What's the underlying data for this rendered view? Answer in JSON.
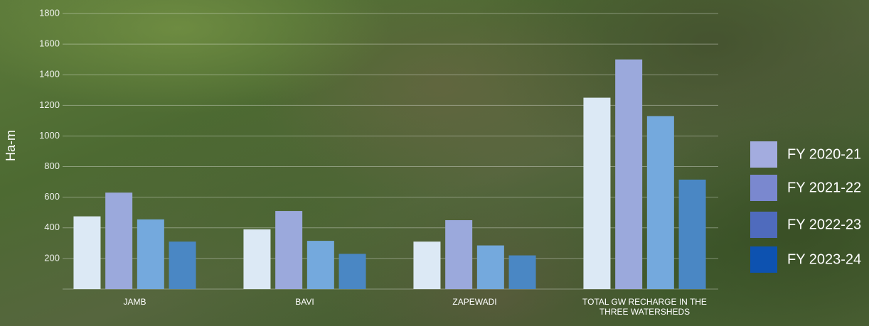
{
  "chart_data": {
    "type": "bar",
    "y_label": "Ha-m",
    "categories": [
      "JAMB",
      "BAVI",
      "ZAPEWADI",
      "TOTAL GW RECHARGE IN THE THREE WATERSHEDS"
    ],
    "series": [
      {
        "name": "FY 2020-21",
        "color": "#dce9f5",
        "legend_color": "#a3acdf",
        "values": [
          475,
          390,
          310,
          1250
        ]
      },
      {
        "name": "FY 2021-22",
        "color": "#9ba9dc",
        "legend_color": "#7a88cf",
        "values": [
          630,
          510,
          450,
          1500
        ]
      },
      {
        "name": "FY 2022-23",
        "color": "#74a9dd",
        "legend_color": "#4f6bbd",
        "values": [
          455,
          315,
          285,
          1130
        ]
      },
      {
        "name": "FY 2023-24",
        "color": "#4a87c4",
        "legend_color": "#0d52b0",
        "values": [
          310,
          230,
          220,
          715
        ]
      }
    ],
    "ylim": [
      0,
      1800
    ],
    "yticks": [
      200,
      400,
      600,
      800,
      1000,
      1200,
      1400,
      1600,
      1800
    ],
    "grid": true,
    "legend": "right"
  }
}
